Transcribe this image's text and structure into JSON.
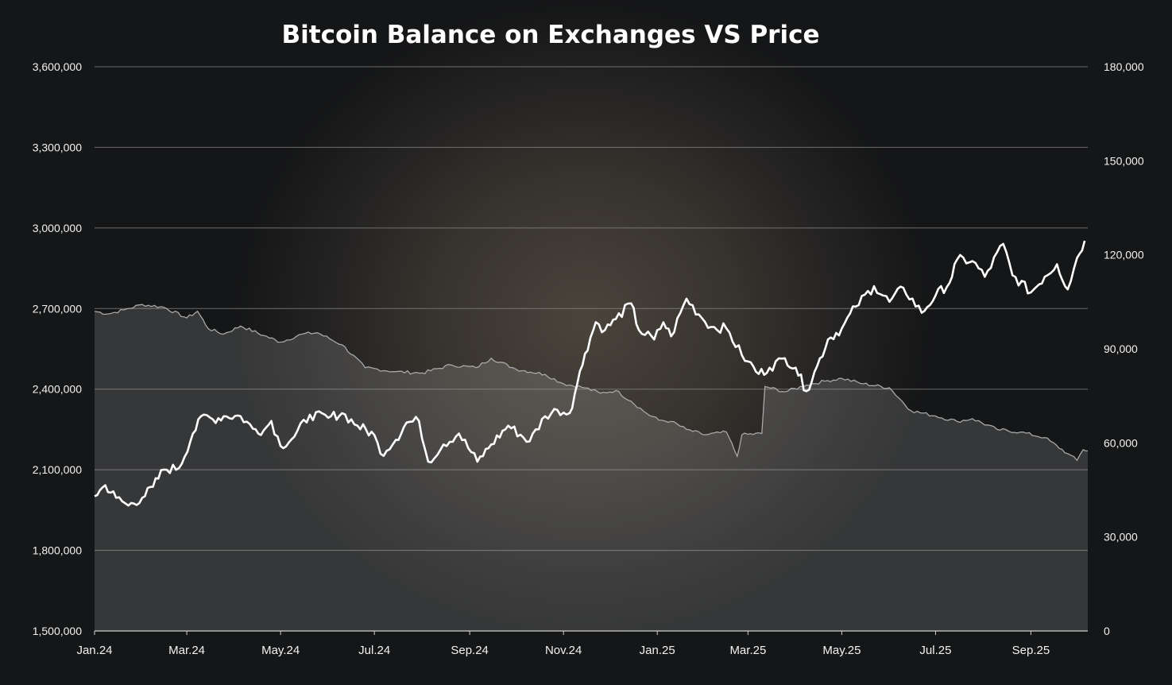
{
  "chart_data": {
    "type": "line",
    "title": "Bitcoin Balance on Exchanges VS Price",
    "x_tick_labels": [
      "Jan.24",
      "Mar.24",
      "May.24",
      "Jul.24",
      "Sep.24",
      "Nov.24",
      "Jan.25",
      "Mar.25",
      "May.25",
      "Jul.25",
      "Sep.25"
    ],
    "x_range": [
      "2024-01-01",
      "2025-10-08"
    ],
    "y_left": {
      "range": [
        1500000,
        3600000
      ],
      "ticks": [
        "1,500,000",
        "1,800,000",
        "2,100,000",
        "2,400,000",
        "2,700,000",
        "3,000,000",
        "3,300,000",
        "3,600,000"
      ]
    },
    "y_right": {
      "range": [
        0,
        180000
      ],
      "ticks": [
        "0",
        "30,000",
        "60,000",
        "90,000",
        "120,000",
        "150,000",
        "180,000"
      ]
    },
    "grid": true,
    "series": [
      {
        "axis": "left",
        "style": "area",
        "color": "#a8a8a8",
        "points": [
          [
            "2024-01-01",
            2690000
          ],
          [
            "2024-01-10",
            2680000
          ],
          [
            "2024-01-20",
            2695000
          ],
          [
            "2024-02-01",
            2715000
          ],
          [
            "2024-02-15",
            2705000
          ],
          [
            "2024-03-01",
            2665000
          ],
          [
            "2024-03-08",
            2690000
          ],
          [
            "2024-03-15",
            2625000
          ],
          [
            "2024-03-25",
            2605000
          ],
          [
            "2024-04-05",
            2635000
          ],
          [
            "2024-04-20",
            2600000
          ],
          [
            "2024-05-01",
            2575000
          ],
          [
            "2024-05-15",
            2605000
          ],
          [
            "2024-05-25",
            2610000
          ],
          [
            "2024-06-10",
            2565000
          ],
          [
            "2024-06-25",
            2480000
          ],
          [
            "2024-07-15",
            2465000
          ],
          [
            "2024-08-01",
            2460000
          ],
          [
            "2024-08-20",
            2490000
          ],
          [
            "2024-09-05",
            2480000
          ],
          [
            "2024-09-15",
            2515000
          ],
          [
            "2024-10-01",
            2475000
          ],
          [
            "2024-10-20",
            2455000
          ],
          [
            "2024-11-01",
            2420000
          ],
          [
            "2024-11-15",
            2405000
          ],
          [
            "2024-11-25",
            2385000
          ],
          [
            "2024-12-05",
            2395000
          ],
          [
            "2024-12-15",
            2355000
          ],
          [
            "2024-12-25",
            2310000
          ],
          [
            "2025-01-02",
            2285000
          ],
          [
            "2025-01-10",
            2280000
          ],
          [
            "2025-01-20",
            2250000
          ],
          [
            "2025-02-01",
            2230000
          ],
          [
            "2025-02-15",
            2240000
          ],
          [
            "2025-02-22",
            2150000
          ],
          [
            "2025-02-25",
            2230000
          ],
          [
            "2025-03-10",
            2235000
          ],
          [
            "2025-03-12",
            2410000
          ],
          [
            "2025-03-25",
            2390000
          ],
          [
            "2025-04-08",
            2415000
          ],
          [
            "2025-04-20",
            2430000
          ],
          [
            "2025-05-01",
            2440000
          ],
          [
            "2025-05-15",
            2420000
          ],
          [
            "2025-06-01",
            2405000
          ],
          [
            "2025-06-15",
            2320000
          ],
          [
            "2025-07-01",
            2300000
          ],
          [
            "2025-07-15",
            2280000
          ],
          [
            "2025-07-25",
            2290000
          ],
          [
            "2025-08-10",
            2250000
          ],
          [
            "2025-08-25",
            2240000
          ],
          [
            "2025-09-10",
            2220000
          ],
          [
            "2025-09-25",
            2160000
          ],
          [
            "2025-10-01",
            2135000
          ],
          [
            "2025-10-05",
            2175000
          ],
          [
            "2025-10-08",
            2170000
          ]
        ]
      },
      {
        "axis": "right",
        "style": "line",
        "color": "#ffffff",
        "points": [
          [
            "2024-01-01",
            43000
          ],
          [
            "2024-01-08",
            46500
          ],
          [
            "2024-01-15",
            42500
          ],
          [
            "2024-01-23",
            40000
          ],
          [
            "2024-02-01",
            42500
          ],
          [
            "2024-02-08",
            46000
          ],
          [
            "2024-02-15",
            51500
          ],
          [
            "2024-02-25",
            52000
          ],
          [
            "2024-03-05",
            63000
          ],
          [
            "2024-03-12",
            69000
          ],
          [
            "2024-03-18",
            67500
          ],
          [
            "2024-03-25",
            68500
          ],
          [
            "2024-04-05",
            68500
          ],
          [
            "2024-04-13",
            64500
          ],
          [
            "2024-04-20",
            64000
          ],
          [
            "2024-04-25",
            67000
          ],
          [
            "2024-05-01",
            59000
          ],
          [
            "2024-05-10",
            62000
          ],
          [
            "2024-05-20",
            69000
          ],
          [
            "2024-06-01",
            68000
          ],
          [
            "2024-06-10",
            69500
          ],
          [
            "2024-06-20",
            65500
          ],
          [
            "2024-07-01",
            62500
          ],
          [
            "2024-07-05",
            56500
          ],
          [
            "2024-07-15",
            61000
          ],
          [
            "2024-07-22",
            66500
          ],
          [
            "2024-07-30",
            67000
          ],
          [
            "2024-08-05",
            54000
          ],
          [
            "2024-08-15",
            59500
          ],
          [
            "2024-08-25",
            63000
          ],
          [
            "2024-09-06",
            54000
          ],
          [
            "2024-09-15",
            59500
          ],
          [
            "2024-09-26",
            65500
          ],
          [
            "2024-10-10",
            60500
          ],
          [
            "2024-10-20",
            68500
          ],
          [
            "2024-10-28",
            70500
          ],
          [
            "2024-11-05",
            69500
          ],
          [
            "2024-11-10",
            79000
          ],
          [
            "2024-11-15",
            88500
          ],
          [
            "2024-11-22",
            98500
          ],
          [
            "2024-11-28",
            96000
          ],
          [
            "2024-12-05",
            99500
          ],
          [
            "2024-12-15",
            104500
          ],
          [
            "2024-12-20",
            96000
          ],
          [
            "2024-12-30",
            93000
          ],
          [
            "2025-01-05",
            98500
          ],
          [
            "2025-01-10",
            94000
          ],
          [
            "2025-01-20",
            106000
          ],
          [
            "2025-01-28",
            101000
          ],
          [
            "2025-02-05",
            97000
          ],
          [
            "2025-02-15",
            96500
          ],
          [
            "2025-02-25",
            88000
          ],
          [
            "2025-03-01",
            86000
          ],
          [
            "2025-03-08",
            82000
          ],
          [
            "2025-03-15",
            84000
          ],
          [
            "2025-03-25",
            87000
          ],
          [
            "2025-04-01",
            84000
          ],
          [
            "2025-04-08",
            76500
          ],
          [
            "2025-04-15",
            84500
          ],
          [
            "2025-04-22",
            93000
          ],
          [
            "2025-05-01",
            96500
          ],
          [
            "2025-05-10",
            103500
          ],
          [
            "2025-05-22",
            110000
          ],
          [
            "2025-06-01",
            105000
          ],
          [
            "2025-06-10",
            109500
          ],
          [
            "2025-06-22",
            101500
          ],
          [
            "2025-07-01",
            107000
          ],
          [
            "2025-07-10",
            111000
          ],
          [
            "2025-07-15",
            118500
          ],
          [
            "2025-07-25",
            118000
          ],
          [
            "2025-08-02",
            113000
          ],
          [
            "2025-08-14",
            123500
          ],
          [
            "2025-08-20",
            113500
          ],
          [
            "2025-09-01",
            108000
          ],
          [
            "2025-09-10",
            113000
          ],
          [
            "2025-09-18",
            117000
          ],
          [
            "2025-09-25",
            109000
          ],
          [
            "2025-10-01",
            119000
          ],
          [
            "2025-10-06",
            124500
          ]
        ]
      }
    ]
  }
}
